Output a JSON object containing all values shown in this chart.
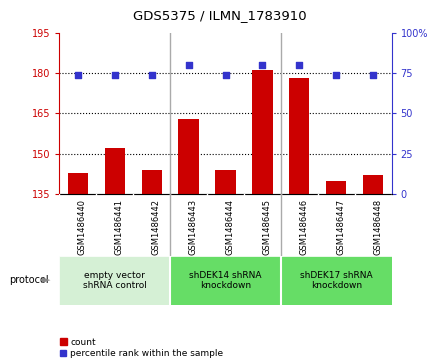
{
  "title": "GDS5375 / ILMN_1783910",
  "samples": [
    "GSM1486440",
    "GSM1486441",
    "GSM1486442",
    "GSM1486443",
    "GSM1486444",
    "GSM1486445",
    "GSM1486446",
    "GSM1486447",
    "GSM1486448"
  ],
  "counts": [
    143,
    152,
    144,
    163,
    144,
    181,
    178,
    140,
    142
  ],
  "percentiles": [
    74,
    74,
    74,
    80,
    74,
    80,
    80,
    74,
    74
  ],
  "ylim_left": [
    135,
    195
  ],
  "ylim_right": [
    0,
    100
  ],
  "yticks_left": [
    135,
    150,
    165,
    180,
    195
  ],
  "yticks_right": [
    0,
    25,
    50,
    75,
    100
  ],
  "bar_color": "#cc0000",
  "dot_color": "#3333cc",
  "groups": [
    {
      "label": "empty vector\nshRNA control",
      "start": 0,
      "end": 3,
      "color": "#d5f0d5"
    },
    {
      "label": "shDEK14 shRNA\nknockdown",
      "start": 3,
      "end": 6,
      "color": "#66dd66"
    },
    {
      "label": "shDEK17 shRNA\nknockdown",
      "start": 6,
      "end": 9,
      "color": "#66dd66"
    }
  ],
  "protocol_label": "protocol",
  "legend_count_label": "count",
  "legend_percentile_label": "percentile rank within the sample",
  "background_color": "#ffffff",
  "plot_bg_color": "#ffffff",
  "tick_label_area_color": "#c8c8c8",
  "separator_color": "#aaaaaa",
  "grid_color": "#000000",
  "left_axis_color": "#cc0000",
  "right_axis_color": "#3333cc"
}
